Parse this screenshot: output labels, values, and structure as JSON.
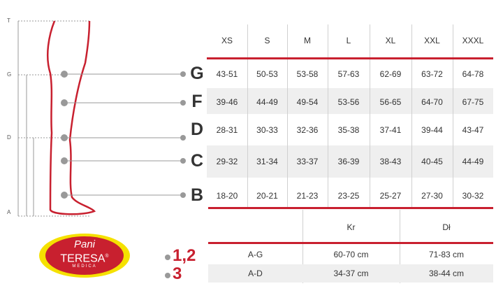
{
  "ruler_labels": [
    "T",
    "G",
    "D",
    "A"
  ],
  "sizes": [
    "XS",
    "S",
    "M",
    "L",
    "XL",
    "XXL",
    "XXXL"
  ],
  "rows": [
    {
      "label": "G",
      "values": [
        "43-51",
        "50-53",
        "53-58",
        "57-63",
        "62-69",
        "63-72",
        "64-78"
      ]
    },
    {
      "label": "F",
      "values": [
        "39-46",
        "44-49",
        "49-54",
        "53-56",
        "56-65",
        "64-70",
        "67-75"
      ]
    },
    {
      "label": "D",
      "values": [
        "28-31",
        "30-33",
        "32-36",
        "35-38",
        "37-41",
        "39-44",
        "43-47"
      ]
    },
    {
      "label": "C",
      "values": [
        "29-32",
        "31-34",
        "33-37",
        "36-39",
        "38-43",
        "40-45",
        "44-49"
      ]
    },
    {
      "label": "B",
      "values": [
        "18-20",
        "20-21",
        "21-23",
        "23-25",
        "25-27",
        "27-30",
        "30-32"
      ]
    }
  ],
  "length_table": {
    "headers": [
      "Kr",
      "Dł"
    ],
    "rows": [
      {
        "label": "A-G",
        "values": [
          "60-70 cm",
          "71-83 cm"
        ],
        "marker": "1,2"
      },
      {
        "label": "A-D",
        "values": [
          "34-37 cm",
          "38-44 cm"
        ],
        "marker": "3"
      }
    ]
  },
  "logo": {
    "line1": "Pani",
    "line2": "TERESA",
    "line3": "MEDICA",
    "reg": "®"
  },
  "colors": {
    "accent": "#c8202f",
    "logo_yellow": "#f5e100",
    "shade": "#efefef"
  }
}
